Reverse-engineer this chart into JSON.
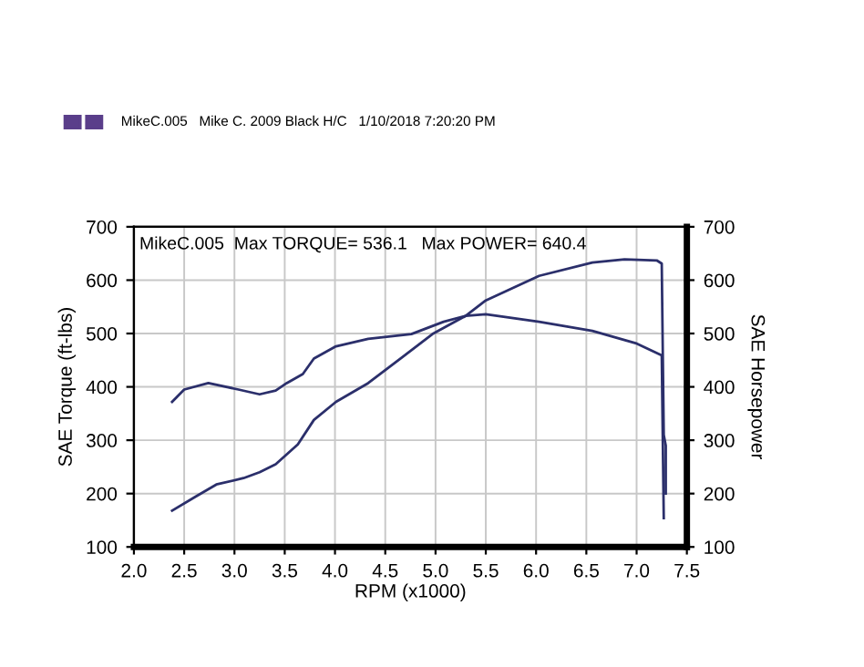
{
  "chart_data": {
    "type": "line",
    "annotations": [
      "MikeC.005   Mike C. 2009 Black H/C   1/10/2018 7:20:20 PM",
      "MikeC.005  Max TORQUE= 536.1",
      "Max POWER= 640.4"
    ],
    "xlabel": "RPM (x1000)",
    "ylabel": "SAE Torque (ft-lbs)",
    "y2label": "SAE Horsepower",
    "series": [
      {
        "color": "#2b2f6b",
        "x": [
          2.38,
          2.5,
          2.74,
          3.04,
          3.25,
          3.41,
          3.52,
          3.68,
          3.79,
          4.01,
          4.33,
          4.76,
          5.08,
          5.3,
          5.5,
          6.03,
          6.56,
          6.99,
          7.25,
          7.27
        ],
        "values": [
          372,
          395,
          407,
          395,
          386,
          393,
          407,
          424,
          453,
          476,
          490,
          499,
          522,
          533,
          536,
          522,
          505,
          482,
          459,
          154
        ]
      },
      {
        "color": "#2b2f6b",
        "x": [
          2.38,
          2.61,
          2.82,
          3.09,
          3.25,
          3.41,
          3.63,
          3.79,
          4.01,
          4.33,
          4.65,
          4.97,
          5.3,
          5.5,
          6.03,
          6.56,
          6.88,
          7.2,
          7.25,
          7.27,
          7.29,
          7.29
        ],
        "values": [
          168,
          194,
          217,
          229,
          240,
          255,
          292,
          338,
          372,
          407,
          453,
          499,
          533,
          562,
          608,
          633,
          639,
          637,
          631,
          310,
          290,
          200
        ]
      }
    ],
    "xlim": [
      2.0,
      7.5
    ],
    "xticks": [
      {
        "value": 2.0,
        "label": "2.0"
      },
      {
        "value": 2.5,
        "label": "2.5"
      },
      {
        "value": 3.0,
        "label": "3.0"
      },
      {
        "value": 3.5,
        "label": "3.5"
      },
      {
        "value": 4.0,
        "label": "4.0"
      },
      {
        "value": 4.5,
        "label": "4.5"
      },
      {
        "value": 5.0,
        "label": "5.0"
      },
      {
        "value": 5.5,
        "label": "5.5"
      },
      {
        "value": 6.0,
        "label": "6.0"
      },
      {
        "value": 6.5,
        "label": "6.5"
      },
      {
        "value": 7.0,
        "label": "7.0"
      },
      {
        "value": 7.5,
        "label": "7.5"
      }
    ],
    "ylim": [
      100,
      700
    ],
    "yticks": [
      100,
      200,
      300,
      400,
      500,
      600,
      700
    ],
    "y2lim": [
      100,
      700
    ],
    "y2ticks": [
      100,
      200,
      300,
      400,
      500,
      600,
      700
    ],
    "grid": true,
    "legend": false,
    "marker": "none",
    "line_style": "solid"
  }
}
